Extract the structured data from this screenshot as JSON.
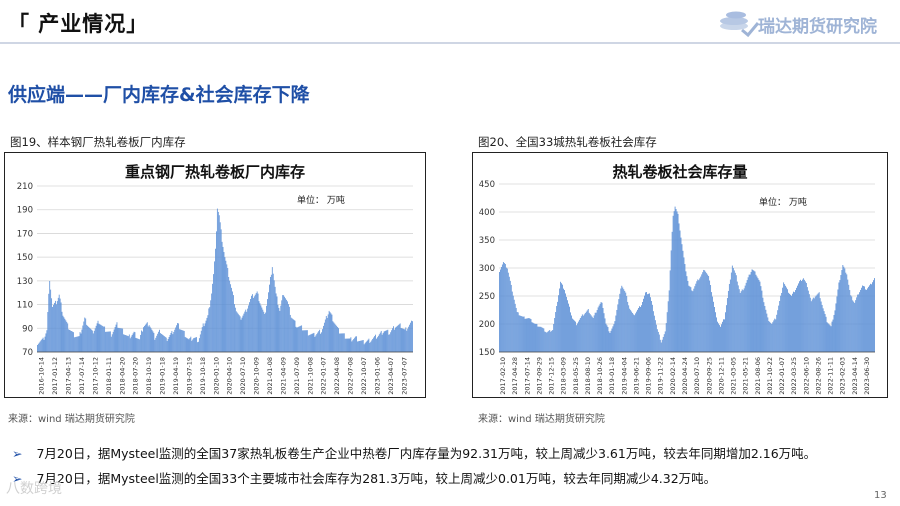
{
  "header": {
    "section_title": "「 产业情况」",
    "logo_text": "瑞达期货研究院",
    "subtitle": "供应端——厂内库存&社会库存下降"
  },
  "charts_meta": [
    {
      "caption": "图19、样本钢厂热轧卷板厂内库存",
      "source": "来源：wind   瑞达期货研究院"
    },
    {
      "caption": "图20、全国33城热轧卷板社会库存",
      "source": "来源：wind   瑞达期货研究院"
    }
  ],
  "bullets": [
    "7月20日，据Mysteel监测的全国37家热轧板卷生产企业中热卷厂内库存量为92.31万吨，较上周减少3.61万吨，较去年同期增加2.16万吨。",
    "7月20日，据Mysteel监测的全国33个主要城市社会库存为281.3万吨，较上周减少0.01万吨，较去年同期减少4.32万吨。"
  ],
  "bullet_marker": "➢",
  "page_number": "13",
  "watermark": "八数跨境",
  "colors": {
    "bar": "#5b8fd6",
    "title_blue": "#1f4fa6"
  },
  "chart_data": [
    {
      "type": "bar",
      "title": "重点钢厂热轧卷板厂内库存",
      "unit_label": "单位：  万吨",
      "ylim": [
        70,
        210
      ],
      "yticks": [
        70,
        90,
        110,
        130,
        150,
        170,
        190,
        210
      ],
      "grid": true,
      "x_tick_labels": [
        "2016-10-14",
        "2017-01-12",
        "2017-04-13",
        "2017-07-14",
        "2017-10-12",
        "2018-01-11",
        "2018-04-20",
        "2018-07-20",
        "2018-10-19",
        "2019-01-18",
        "2019-04-19",
        "2019-07-19",
        "2019-10-18",
        "2020-01-10",
        "2020-04-10",
        "2020-07-10",
        "2020-10-09",
        "2021-01-08",
        "2021-04-09",
        "2021-07-09",
        "2021-10-08",
        "2022-01-07",
        "2022-04-08",
        "2022-07-08",
        "2022-10-07",
        "2023-01-06",
        "2023-04-07",
        "2023-07-07"
      ],
      "anchors": [
        [
          0,
          78
        ],
        [
          6,
          80
        ],
        [
          10,
          88
        ],
        [
          13,
          132
        ],
        [
          16,
          108
        ],
        [
          20,
          112
        ],
        [
          23,
          118
        ],
        [
          27,
          102
        ],
        [
          32,
          92
        ],
        [
          38,
          85
        ],
        [
          44,
          82
        ],
        [
          50,
          98
        ],
        [
          58,
          86
        ],
        [
          65,
          96
        ],
        [
          70,
          90
        ],
        [
          78,
          85
        ],
        [
          84,
          93
        ],
        [
          90,
          88
        ],
        [
          96,
          82
        ],
        [
          102,
          86
        ],
        [
          108,
          80
        ],
        [
          112,
          92
        ],
        [
          118,
          94
        ],
        [
          124,
          82
        ],
        [
          130,
          88
        ],
        [
          136,
          80
        ],
        [
          142,
          86
        ],
        [
          148,
          93
        ],
        [
          155,
          86
        ],
        [
          160,
          80
        ],
        [
          165,
          82
        ],
        [
          170,
          80
        ],
        [
          175,
          92
        ],
        [
          180,
          100
        ],
        [
          184,
          120
        ],
        [
          186,
          135
        ],
        [
          188,
          155
        ],
        [
          190,
          192
        ],
        [
          192,
          185
        ],
        [
          195,
          165
        ],
        [
          198,
          150
        ],
        [
          202,
          135
        ],
        [
          206,
          120
        ],
        [
          210,
          105
        ],
        [
          214,
          98
        ],
        [
          220,
          104
        ],
        [
          226,
          116
        ],
        [
          232,
          120
        ],
        [
          236,
          110
        ],
        [
          240,
          100
        ],
        [
          244,
          120
        ],
        [
          248,
          143
        ],
        [
          252,
          118
        ],
        [
          256,
          105
        ],
        [
          260,
          120
        ],
        [
          264,
          112
        ],
        [
          268,
          100
        ],
        [
          274,
          92
        ],
        [
          280,
          90
        ],
        [
          286,
          86
        ],
        [
          292,
          84
        ],
        [
          300,
          88
        ],
        [
          304,
          96
        ],
        [
          308,
          105
        ],
        [
          312,
          98
        ],
        [
          318,
          88
        ],
        [
          324,
          84
        ],
        [
          330,
          80
        ],
        [
          336,
          82
        ],
        [
          344,
          78
        ],
        [
          352,
          80
        ],
        [
          360,
          84
        ],
        [
          366,
          88
        ],
        [
          372,
          86
        ],
        [
          378,
          92
        ],
        [
          384,
          92
        ],
        [
          388,
          88
        ],
        [
          392,
          92
        ],
        [
          396,
          96
        ]
      ]
    },
    {
      "type": "bar",
      "title": "热轧卷板社会库存量",
      "unit_label": "单位：  万吨",
      "ylim": [
        150,
        450
      ],
      "yticks": [
        150,
        200,
        250,
        300,
        350,
        400,
        450
      ],
      "grid": true,
      "x_tick_labels": [
        "2017-02-10",
        "2017-04-28",
        "2017-07-14",
        "2017-09-29",
        "2017-12-15",
        "2018-03-09",
        "2018-05-25",
        "2018-08-10",
        "2018-10-26",
        "2019-01-18",
        "2019-04-04",
        "2019-06-21",
        "2019-09-06",
        "2019-11-22",
        "2020-02-14",
        "2020-04-24",
        "2020-07-10",
        "2020-09-25",
        "2020-12-11",
        "2021-03-05",
        "2021-05-21",
        "2021-08-06",
        "2021-10-22",
        "2022-01-07",
        "2022-03-25",
        "2022-06-10",
        "2022-08-26",
        "2022-11-11",
        "2023-02-03",
        "2023-04-14",
        "2023-06-30"
      ],
      "anchors": [
        [
          0,
          295
        ],
        [
          4,
          310
        ],
        [
          8,
          300
        ],
        [
          13,
          260
        ],
        [
          18,
          220
        ],
        [
          24,
          212
        ],
        [
          30,
          210
        ],
        [
          36,
          200
        ],
        [
          42,
          195
        ],
        [
          48,
          185
        ],
        [
          54,
          190
        ],
        [
          58,
          230
        ],
        [
          62,
          275
        ],
        [
          66,
          262
        ],
        [
          70,
          235
        ],
        [
          74,
          210
        ],
        [
          78,
          200
        ],
        [
          84,
          215
        ],
        [
          90,
          225
        ],
        [
          95,
          210
        ],
        [
          100,
          230
        ],
        [
          104,
          240
        ],
        [
          108,
          200
        ],
        [
          112,
          185
        ],
        [
          116,
          198
        ],
        [
          120,
          235
        ],
        [
          124,
          270
        ],
        [
          128,
          255
        ],
        [
          132,
          228
        ],
        [
          136,
          215
        ],
        [
          140,
          225
        ],
        [
          144,
          235
        ],
        [
          148,
          255
        ],
        [
          152,
          255
        ],
        [
          156,
          225
        ],
        [
          160,
          190
        ],
        [
          164,
          168
        ],
        [
          168,
          185
        ],
        [
          172,
          260
        ],
        [
          174,
          330
        ],
        [
          176,
          395
        ],
        [
          178,
          410
        ],
        [
          181,
          395
        ],
        [
          184,
          355
        ],
        [
          188,
          305
        ],
        [
          192,
          268
        ],
        [
          196,
          260
        ],
        [
          200,
          275
        ],
        [
          204,
          285
        ],
        [
          208,
          298
        ],
        [
          212,
          285
        ],
        [
          216,
          250
        ],
        [
          220,
          210
        ],
        [
          224,
          195
        ],
        [
          228,
          210
        ],
        [
          232,
          258
        ],
        [
          236,
          305
        ],
        [
          240,
          285
        ],
        [
          244,
          255
        ],
        [
          248,
          265
        ],
        [
          252,
          282
        ],
        [
          256,
          298
        ],
        [
          260,
          290
        ],
        [
          264,
          275
        ],
        [
          268,
          240
        ],
        [
          272,
          210
        ],
        [
          276,
          200
        ],
        [
          280,
          210
        ],
        [
          284,
          240
        ],
        [
          288,
          275
        ],
        [
          292,
          260
        ],
        [
          296,
          250
        ],
        [
          300,
          262
        ],
        [
          304,
          275
        ],
        [
          308,
          282
        ],
        [
          312,
          268
        ],
        [
          316,
          240
        ],
        [
          320,
          250
        ],
        [
          324,
          255
        ],
        [
          328,
          228
        ],
        [
          332,
          205
        ],
        [
          336,
          195
        ],
        [
          340,
          225
        ],
        [
          344,
          272
        ],
        [
          348,
          305
        ],
        [
          352,
          290
        ],
        [
          356,
          250
        ],
        [
          360,
          238
        ],
        [
          364,
          255
        ],
        [
          368,
          268
        ],
        [
          372,
          262
        ],
        [
          376,
          270
        ],
        [
          380,
          282
        ]
      ]
    }
  ]
}
